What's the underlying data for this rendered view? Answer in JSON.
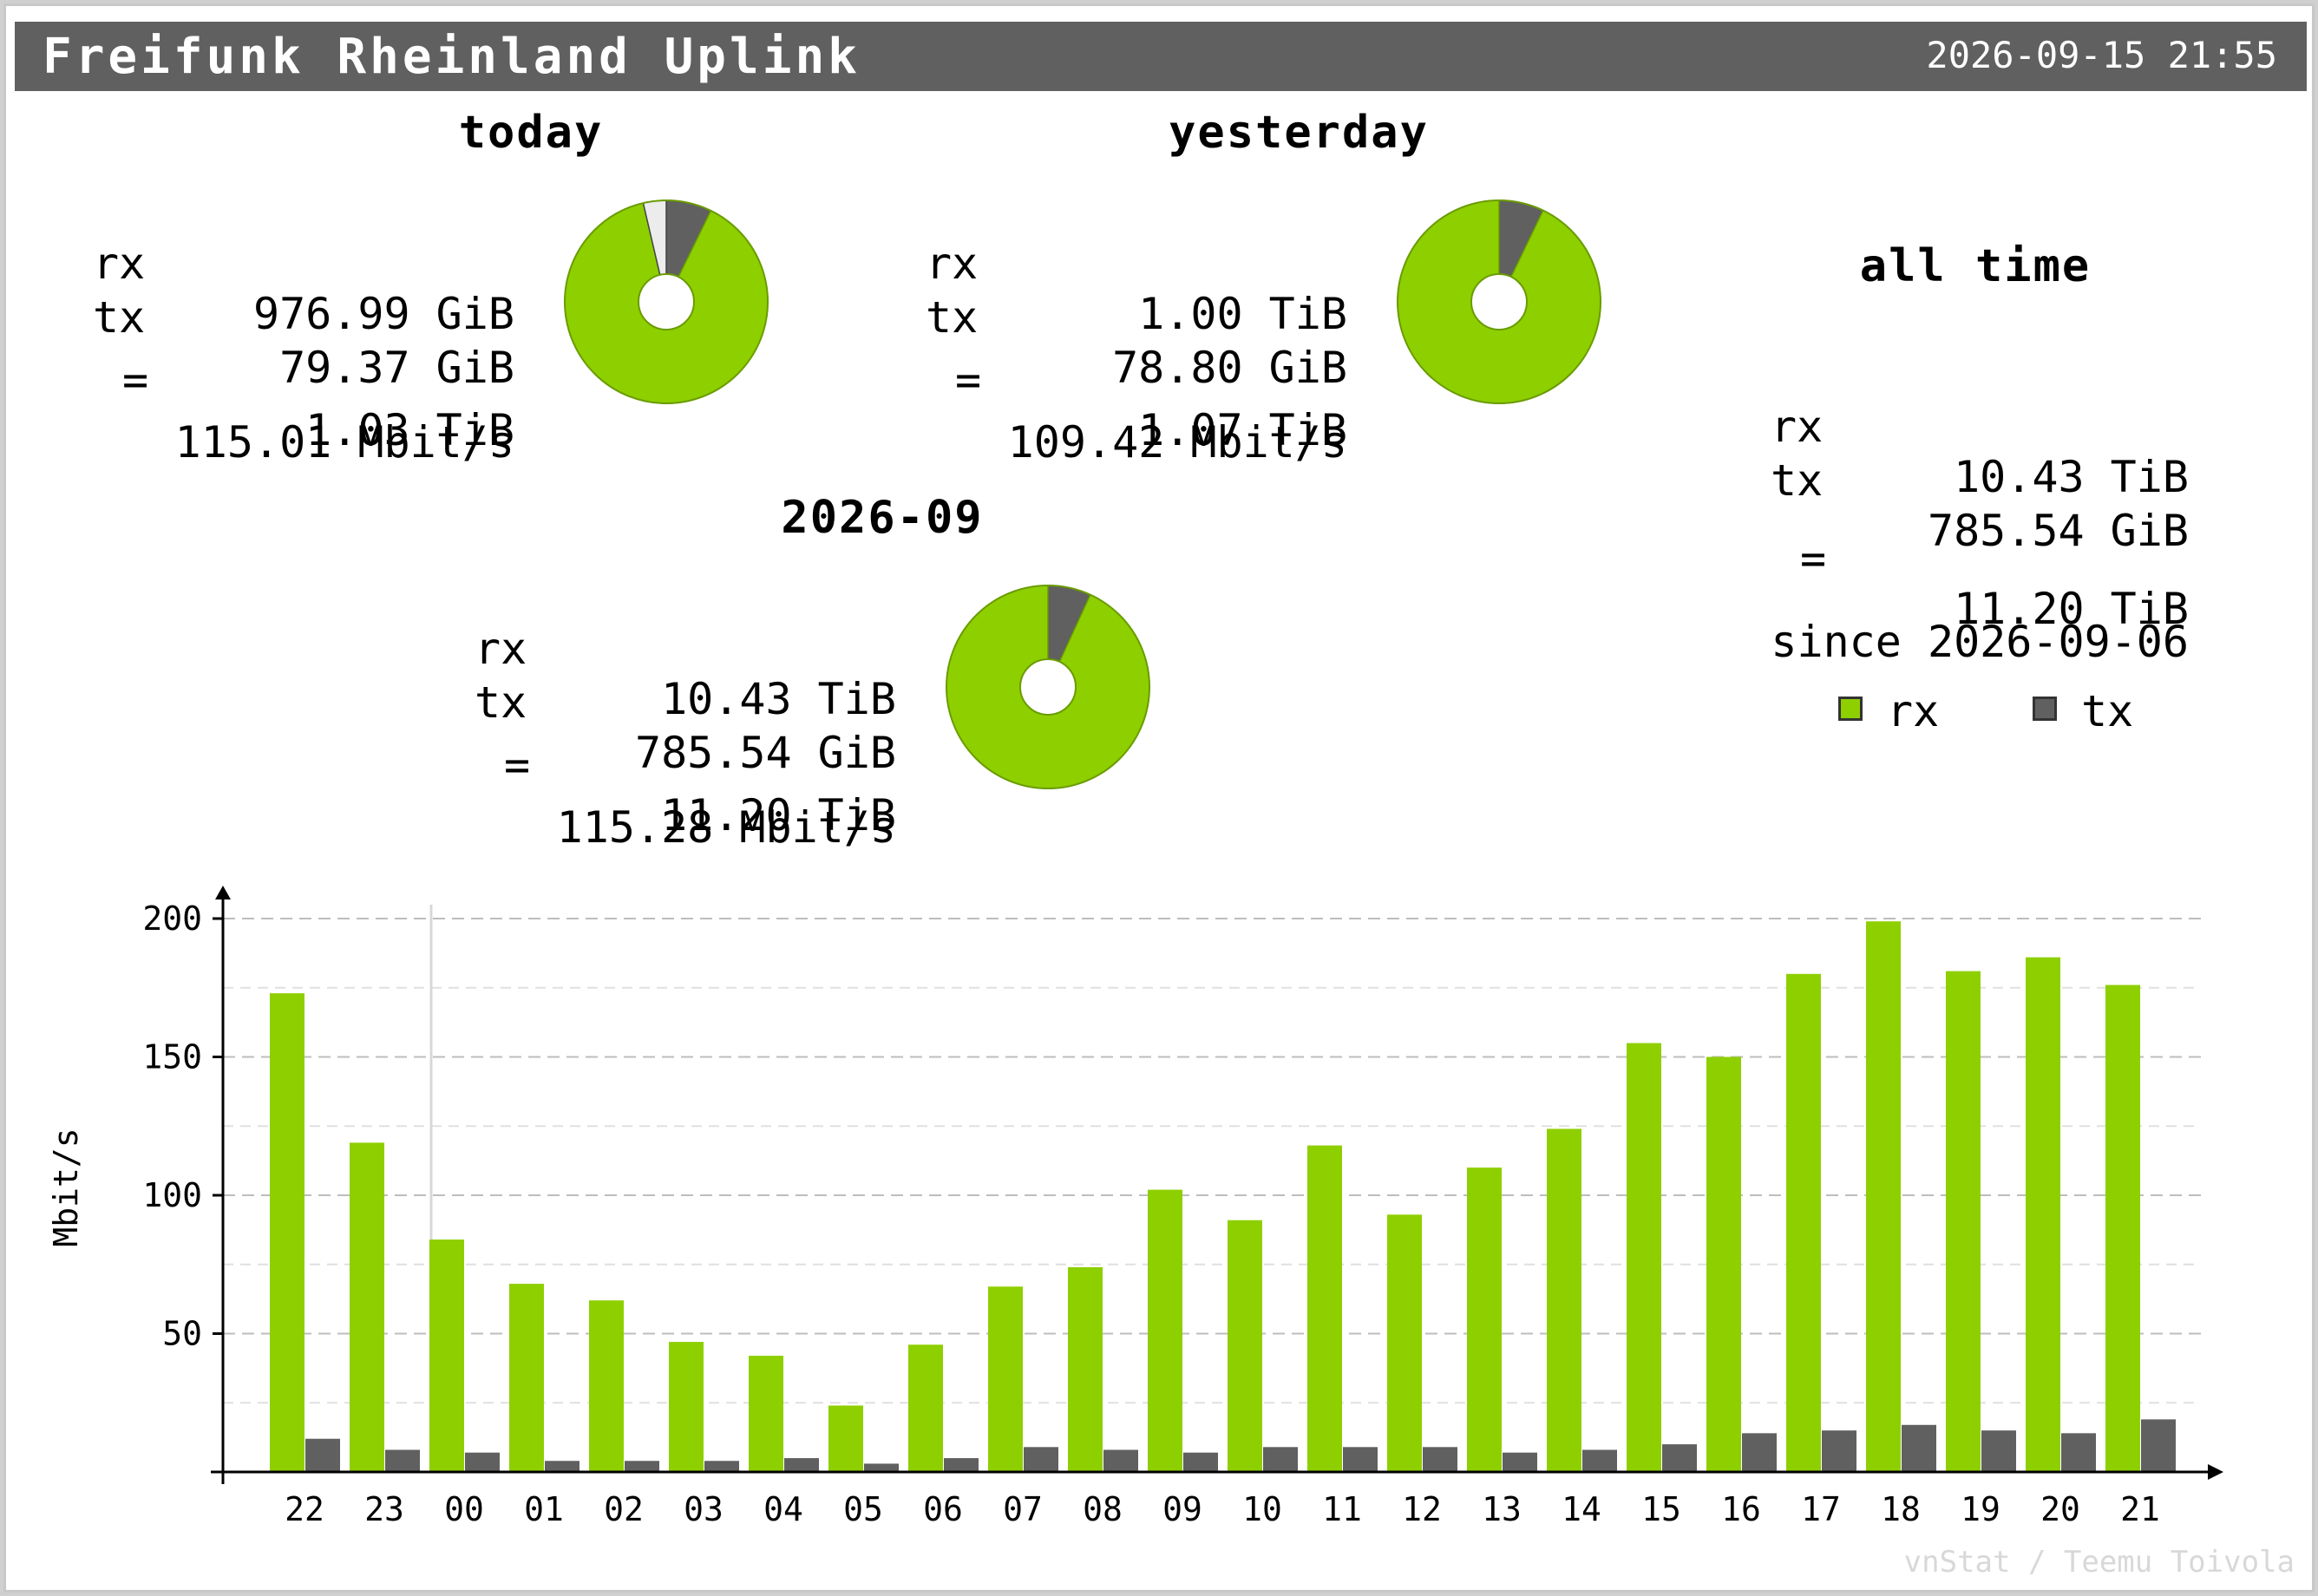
{
  "header": {
    "title": "Freifunk Rheinland Uplink",
    "timestamp": "2026-09-15 21:55"
  },
  "colors": {
    "rx": "#8ecf00",
    "tx": "#606060",
    "other": "#ececec",
    "title_bar": "#606060"
  },
  "summary": {
    "today": {
      "title": "today",
      "rx_label": "rx",
      "rx": "976.99 GiB",
      "tx_label": "tx",
      "tx": "79.37 GiB",
      "total_label": "=",
      "total": "1.03 TiB",
      "rate": "115.01 Mbit/s"
    },
    "yesterday": {
      "title": "yesterday",
      "rx_label": "rx",
      "rx": "1.00 TiB",
      "tx_label": "tx",
      "tx": "78.80 GiB",
      "total_label": "=",
      "total": "1.07 TiB",
      "rate": "109.42 Mbit/s"
    },
    "month": {
      "title": "2026-09",
      "rx_label": "rx",
      "rx": "10.43 TiB",
      "tx_label": "tx",
      "tx": "785.54 GiB",
      "total_label": "=",
      "total": "11.20 TiB",
      "rate": "115.28 Mbit/s"
    },
    "alltime": {
      "title": "all time",
      "rx_label": "rx",
      "rx": "10.43 TiB",
      "tx_label": "tx",
      "tx": "785.54 GiB",
      "total_label": "=",
      "total": "11.20 TiB",
      "since": "since 2026-09-06"
    }
  },
  "legend": {
    "rx": "rx",
    "tx": "tx"
  },
  "footer": "vnStat / Teemu Toivola",
  "chart_data": [
    {
      "type": "pie",
      "title": "today",
      "slices": [
        {
          "name": "rx",
          "value": 976.99
        },
        {
          "name": "tx",
          "value": 79.37
        },
        {
          "name": "remaining",
          "value": 40
        }
      ]
    },
    {
      "type": "pie",
      "title": "yesterday",
      "slices": [
        {
          "name": "rx",
          "value": 1024
        },
        {
          "name": "tx",
          "value": 78.8
        }
      ]
    },
    {
      "type": "pie",
      "title": "2026-09",
      "slices": [
        {
          "name": "rx",
          "value": 10680
        },
        {
          "name": "tx",
          "value": 785.54
        }
      ]
    },
    {
      "type": "bar",
      "ylabel": "Mbit/s",
      "ylim": [
        0,
        200
      ],
      "yticks": [
        50,
        100,
        150,
        200
      ],
      "grid": true,
      "categories": [
        "22",
        "23",
        "00",
        "01",
        "02",
        "03",
        "04",
        "05",
        "06",
        "07",
        "08",
        "09",
        "10",
        "11",
        "12",
        "13",
        "14",
        "15",
        "16",
        "17",
        "18",
        "19",
        "20",
        "21"
      ],
      "series": [
        {
          "name": "rx",
          "values": [
            173,
            119,
            84,
            68,
            62,
            47,
            42,
            24,
            46,
            67,
            74,
            102,
            91,
            118,
            93,
            110,
            124,
            155,
            150,
            180,
            199,
            181,
            186,
            176
          ]
        },
        {
          "name": "tx",
          "values": [
            12,
            8,
            7,
            4,
            4,
            4,
            5,
            3,
            5,
            9,
            8,
            7,
            9,
            9,
            9,
            7,
            8,
            10,
            14,
            15,
            17,
            15,
            14,
            19
          ]
        }
      ]
    }
  ]
}
